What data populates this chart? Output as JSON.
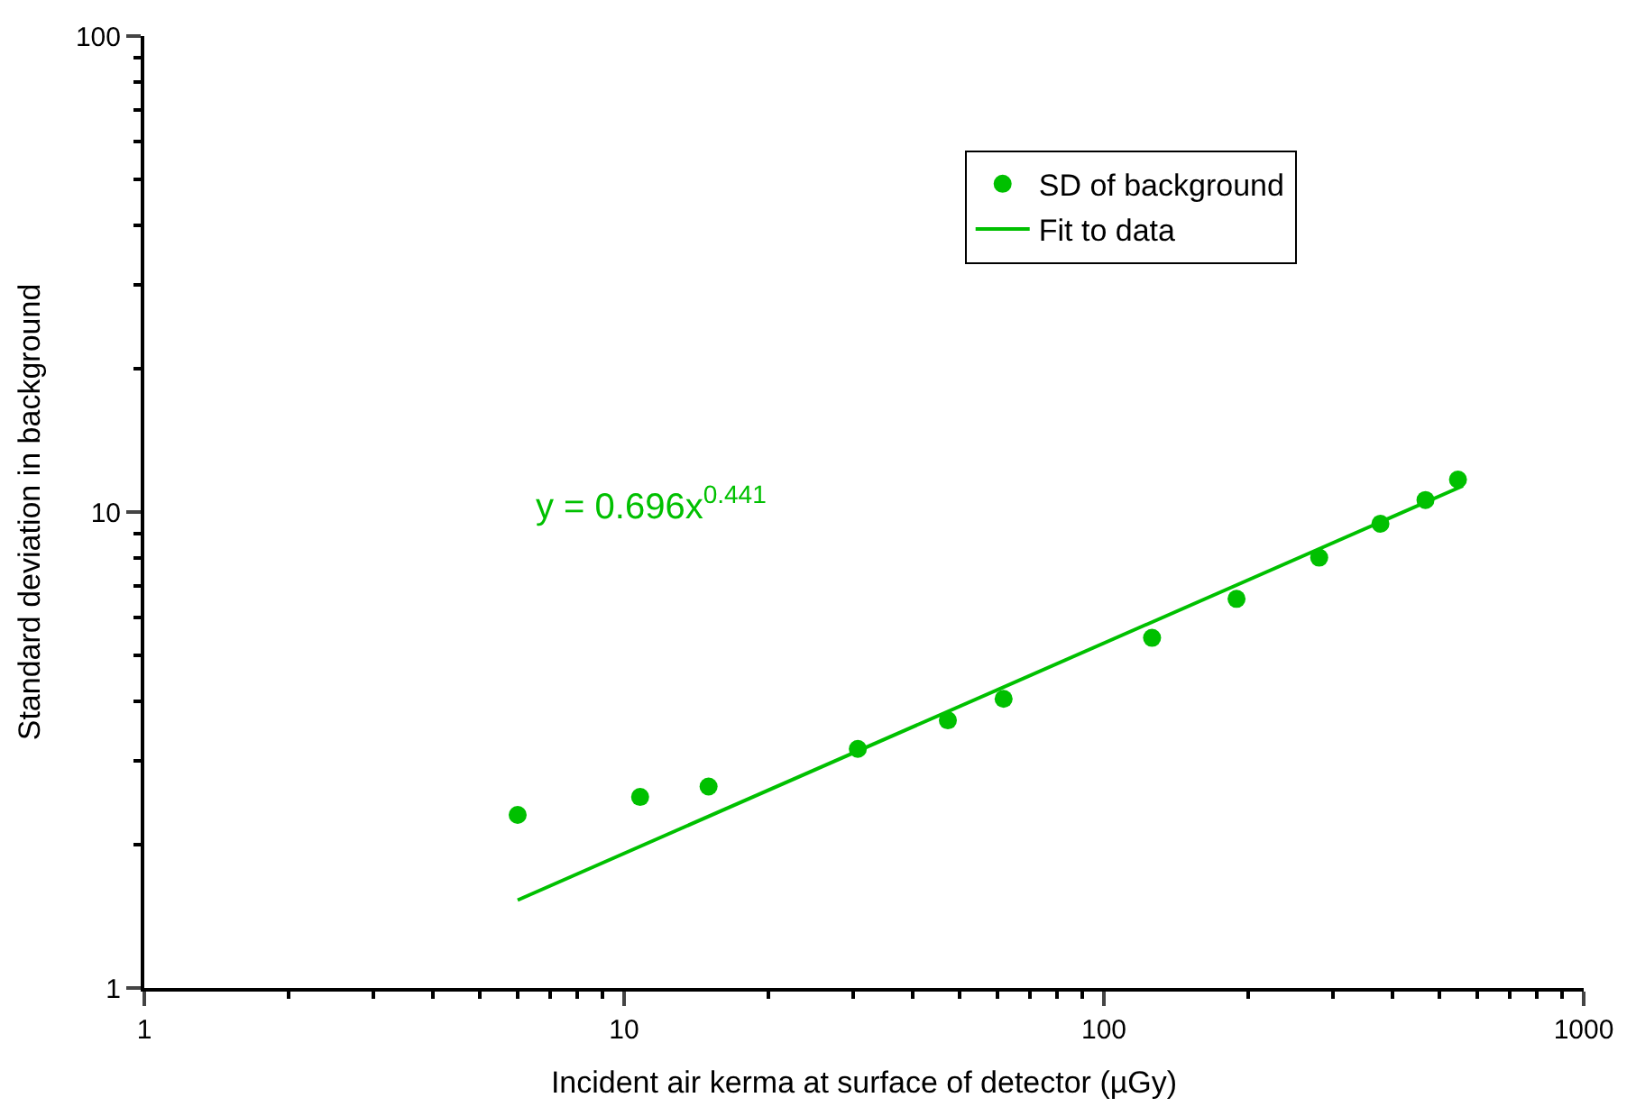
{
  "chart_data": {
    "type": "scatter",
    "xlabel": "Incident air kerma at surface of detector (µGy)",
    "ylabel": "Standard deviation in background",
    "series": [
      {
        "name": "SD of background",
        "marker": "circle",
        "color": "#00c000",
        "x": [
          6,
          10.8,
          15,
          30.7,
          47.3,
          61.8,
          126,
          189,
          281,
          377,
          468,
          547
        ],
        "values": [
          2.31,
          2.52,
          2.65,
          3.18,
          3.65,
          4.05,
          5.44,
          6.57,
          8.02,
          9.45,
          10.6,
          11.7
        ]
      },
      {
        "name": "Fit to data",
        "type": "line",
        "marker": "none",
        "color": "#00c000",
        "x": [
          6,
          560
        ],
        "values": [
          1.53,
          11.35
        ]
      }
    ],
    "annotations": [
      "y = 0.696x$^{0.441}$"
    ],
    "log": "xy",
    "xlim": [
      1,
      1000
    ],
    "xticks": [
      1,
      10,
      100,
      1000
    ],
    "ylim": [
      1,
      100
    ],
    "yticks": [
      1,
      10,
      100
    ],
    "grid": false,
    "legend": "top right"
  }
}
